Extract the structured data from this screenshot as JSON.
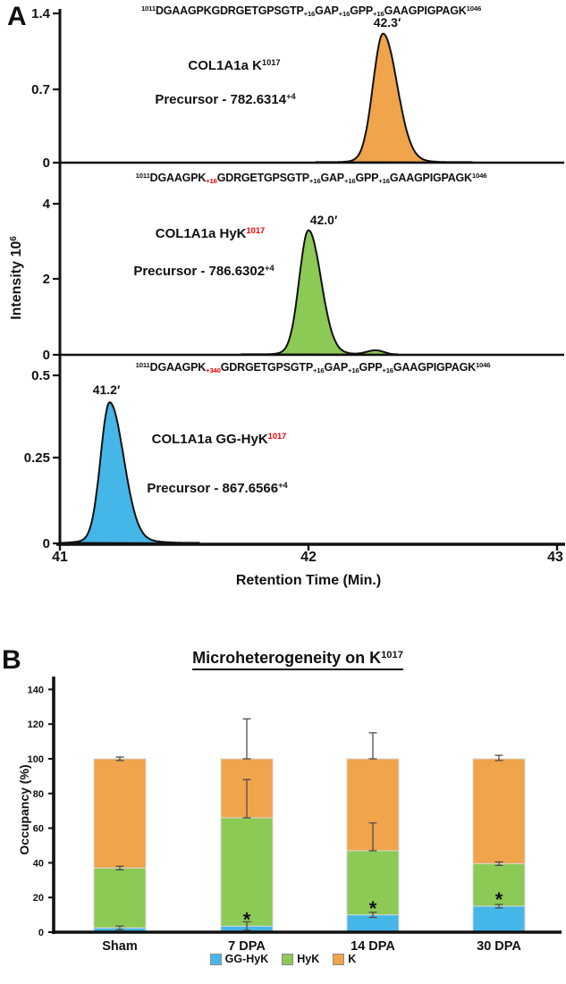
{
  "figure": {
    "panel_a_letter": "A",
    "panel_b_letter": "B"
  },
  "panelA": {
    "y_axis_label_parts": [
      {
        "s": "t",
        "t": "Intensity 10"
      },
      {
        "s": "sup",
        "t": "6"
      }
    ],
    "x_axis_label": "Retention Time (Min.)",
    "x_ticks": [
      "41",
      "42",
      "43"
    ],
    "traces": [
      {
        "sequence_parts": [
          {
            "s": "sup",
            "t": "1011"
          },
          {
            "s": "t",
            "t": "DGAAGPKGDRGETGPSGTP"
          },
          {
            "s": "sub",
            "t": "+16"
          },
          {
            "s": "t",
            "t": "GAP"
          },
          {
            "s": "sub",
            "t": "+16"
          },
          {
            "s": "t",
            "t": "GPP"
          },
          {
            "s": "sub",
            "t": "+16"
          },
          {
            "s": "t",
            "t": "GAAGPIGPAGK"
          },
          {
            "s": "sup",
            "t": "1046"
          }
        ],
        "name_parts": [
          {
            "s": "t",
            "t": "COL1A1a K"
          },
          {
            "s": "sup",
            "t": "1017"
          }
        ],
        "precursor_parts": [
          {
            "s": "t",
            "t": "Precursor - 782.6314"
          },
          {
            "s": "sup",
            "t": "+4"
          }
        ],
        "peak_label": "42.3′",
        "y_ticks": [
          "1.4",
          "0.7",
          "0"
        ]
      },
      {
        "sequence_parts": [
          {
            "s": "sup",
            "t": "1011"
          },
          {
            "s": "t",
            "t": "DGAAGPK"
          },
          {
            "s": "subred",
            "t": "+16"
          },
          {
            "s": "t",
            "t": "GDRGETGPSGTP"
          },
          {
            "s": "sub",
            "t": "+16"
          },
          {
            "s": "t",
            "t": "GAP"
          },
          {
            "s": "sub",
            "t": "+16"
          },
          {
            "s": "t",
            "t": "GPP"
          },
          {
            "s": "sub",
            "t": "+16"
          },
          {
            "s": "t",
            "t": "GAAGPIGPAGK"
          },
          {
            "s": "sup",
            "t": "1046"
          }
        ],
        "name_parts": [
          {
            "s": "t",
            "t": "COL1A1a HyK"
          },
          {
            "s": "supred",
            "t": "1017"
          }
        ],
        "precursor_parts": [
          {
            "s": "t",
            "t": "Precursor - 786.6302"
          },
          {
            "s": "sup",
            "t": "+4"
          }
        ],
        "peak_label": "42.0′",
        "y_ticks": [
          "4",
          "2",
          "0"
        ]
      },
      {
        "sequence_parts": [
          {
            "s": "sup",
            "t": "1011"
          },
          {
            "s": "t",
            "t": "DGAAGPK"
          },
          {
            "s": "subred",
            "t": "+340"
          },
          {
            "s": "t",
            "t": "GDRGETGPSGTP"
          },
          {
            "s": "sub",
            "t": "+16"
          },
          {
            "s": "t",
            "t": "GAP"
          },
          {
            "s": "sub",
            "t": "+16"
          },
          {
            "s": "t",
            "t": "GPP"
          },
          {
            "s": "sub",
            "t": "+16"
          },
          {
            "s": "t",
            "t": "GAAGPIGPAGK"
          },
          {
            "s": "sup",
            "t": "1046"
          }
        ],
        "name_parts": [
          {
            "s": "t",
            "t": "COL1A1a GG-HyK"
          },
          {
            "s": "supred",
            "t": "1017"
          }
        ],
        "precursor_parts": [
          {
            "s": "t",
            "t": "Precursor - 867.6566"
          },
          {
            "s": "sup",
            "t": "+4"
          }
        ],
        "peak_label": "41.2′",
        "y_ticks": [
          "0.5",
          "0.25",
          "0"
        ]
      }
    ]
  },
  "panelB": {
    "title_parts": [
      {
        "s": "t",
        "t": "Microheterogeneity on K"
      },
      {
        "s": "sup",
        "t": "1017"
      }
    ],
    "y_axis_label": "Occupancy (%)"
  },
  "chart_data": [
    {
      "type": "area",
      "title": "Extracted ion chromatograms of COL1A1a K1017 peptide forms",
      "xlabel": "Retention Time (Min.)",
      "ylabel": "Intensity 10^6",
      "xlim": [
        41,
        43
      ],
      "x_ticks": [
        41,
        42,
        43
      ],
      "traces": [
        {
          "name": "COL1A1a K1017",
          "precursor": "782.6314",
          "charge": "+4",
          "retention_time_min": 42.3,
          "peak_intensity_1e6": 1.21,
          "ylim": [
            0,
            1.4
          ],
          "y_ticks": [
            1.4,
            0.7,
            0
          ],
          "color": "#F0A44B",
          "sigma_min": [
            0.04,
            0.056
          ],
          "foot": 0.02
        },
        {
          "name": "COL1A1a HyK1017",
          "precursor": "786.6302",
          "charge": "+4",
          "retention_time_min": 42.0,
          "peak_intensity_1e6": 3.3,
          "ylim": [
            0,
            4.4
          ],
          "y_ticks": [
            4,
            2,
            0
          ],
          "color": "#8DC955",
          "sigma_min": [
            0.037,
            0.05
          ],
          "foot": 0.02,
          "satellite": {
            "rt": 42.27,
            "h": 0.035,
            "sigma": 0.035
          }
        },
        {
          "name": "COL1A1a GG-HyK1017",
          "precursor": "867.6566",
          "charge": "+4",
          "retention_time_min": 41.2,
          "peak_intensity_1e6": 0.42,
          "ylim": [
            0,
            0.5
          ],
          "y_ticks": [
            0.5,
            0.25,
            0
          ],
          "color": "#45B6E8",
          "sigma_min": [
            0.036,
            0.056
          ],
          "foot": 0.03
        }
      ]
    },
    {
      "type": "bar",
      "subtype": "stacked",
      "title": "Microheterogeneity on K1017",
      "ylabel": "Occupancy (%)",
      "ylim": [
        0,
        150
      ],
      "y_ticks": [
        0,
        20,
        40,
        60,
        80,
        100,
        120,
        140
      ],
      "categories": [
        "Sham",
        "7 DPA",
        "14 DPA",
        "30 DPA"
      ],
      "legend_position": "bottom",
      "series": [
        {
          "name": "GG-HyK",
          "color": "#45B6E8",
          "values": [
            2.5,
            3.5,
            10,
            15
          ]
        },
        {
          "name": "HyK",
          "color": "#8DC955",
          "values": [
            34.5,
            62.5,
            37,
            24.5
          ]
        },
        {
          "name": "K",
          "color": "#F0A44B",
          "values": [
            63,
            34,
            53,
            60.5
          ]
        }
      ],
      "stack_tops": [
        [
          2.5,
          37,
          100
        ],
        [
          3.5,
          66,
          100
        ],
        [
          10,
          47,
          100
        ],
        [
          15,
          39.5,
          100
        ]
      ],
      "error_bars": {
        "at": [
          [
            2.5,
            37,
            100
          ],
          [
            3.5,
            66,
            100
          ],
          [
            10,
            47,
            100
          ],
          [
            15,
            39.5,
            100
          ]
        ],
        "up": [
          [
            1,
            1,
            1
          ],
          [
            2.5,
            22,
            23
          ],
          [
            1.5,
            16,
            15
          ],
          [
            1,
            1,
            2
          ]
        ],
        "down": [
          [
            1,
            1,
            1
          ],
          [
            2.5,
            0,
            0
          ],
          [
            1.5,
            0,
            0
          ],
          [
            1,
            1,
            1
          ]
        ]
      },
      "significance": [
        {
          "category": "7 DPA",
          "marker": "*",
          "y": 7
        },
        {
          "category": "14 DPA",
          "marker": "*",
          "y": 13.5
        },
        {
          "category": "30 DPA",
          "marker": "*",
          "y": 18.5
        }
      ]
    }
  ]
}
